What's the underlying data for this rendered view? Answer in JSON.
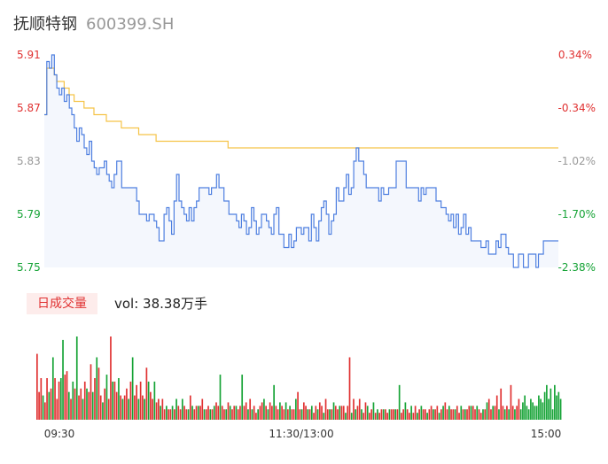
{
  "header": {
    "name": "抚顺特钢",
    "code": "600399.SH"
  },
  "volume": {
    "badge": "日成交量",
    "label": "vol: 38.38万手"
  },
  "chart_data": [
    {
      "type": "line",
      "chart": "intraday-price",
      "y_ticks_left": [
        "5.91",
        "5.87",
        "5.83",
        "5.79",
        "5.75"
      ],
      "y_ticks_right": [
        "0.34%",
        "-0.34%",
        "-1.02%",
        "-1.70%",
        "-2.38%"
      ],
      "ylim": [
        5.75,
        5.91
      ],
      "series": [
        {
          "color": "#4e7fe0",
          "values": [
            5.865,
            5.905,
            5.9,
            5.91,
            5.895,
            5.885,
            5.88,
            5.885,
            5.875,
            5.88,
            5.87,
            5.865,
            5.855,
            5.845,
            5.855,
            5.85,
            5.84,
            5.835,
            5.845,
            5.83,
            5.825,
            5.82,
            5.825,
            5.825,
            5.83,
            5.82,
            5.815,
            5.81,
            5.82,
            5.83,
            5.83,
            5.81,
            5.81,
            5.81,
            5.81,
            5.81,
            5.81,
            5.8,
            5.79,
            5.79,
            5.79,
            5.785,
            5.79,
            5.79,
            5.785,
            5.78,
            5.77,
            5.77,
            5.79,
            5.795,
            5.785,
            5.775,
            5.8,
            5.82,
            5.8,
            5.795,
            5.79,
            5.785,
            5.795,
            5.785,
            5.795,
            5.8,
            5.81,
            5.81,
            5.81,
            5.81,
            5.805,
            5.81,
            5.81,
            5.82,
            5.81,
            5.81,
            5.8,
            5.8,
            5.79,
            5.79,
            5.79,
            5.785,
            5.78,
            5.79,
            5.785,
            5.775,
            5.78,
            5.795,
            5.785,
            5.775,
            5.78,
            5.79,
            5.79,
            5.785,
            5.78,
            5.775,
            5.79,
            5.795,
            5.775,
            5.775,
            5.765,
            5.765,
            5.775,
            5.765,
            5.77,
            5.78,
            5.78,
            5.775,
            5.78,
            5.78,
            5.77,
            5.79,
            5.78,
            5.77,
            5.785,
            5.795,
            5.8,
            5.79,
            5.775,
            5.785,
            5.79,
            5.81,
            5.8,
            5.8,
            5.81,
            5.82,
            5.805,
            5.81,
            5.83,
            5.84,
            5.83,
            5.83,
            5.82,
            5.81,
            5.81,
            5.81,
            5.81,
            5.81,
            5.8,
            5.81,
            5.805,
            5.805,
            5.81,
            5.81,
            5.81,
            5.83,
            5.83,
            5.83,
            5.83,
            5.81,
            5.81,
            5.81,
            5.81,
            5.81,
            5.8,
            5.81,
            5.805,
            5.81,
            5.81,
            5.81,
            5.81,
            5.8,
            5.8,
            5.795,
            5.795,
            5.79,
            5.785,
            5.79,
            5.78,
            5.79,
            5.775,
            5.78,
            5.79,
            5.775,
            5.78,
            5.77,
            5.77,
            5.77,
            5.77,
            5.765,
            5.765,
            5.77,
            5.76,
            5.76,
            5.76,
            5.77,
            5.765,
            5.775,
            5.775,
            5.765,
            5.76,
            5.76,
            5.75,
            5.75,
            5.76,
            5.76,
            5.75,
            5.75,
            5.76,
            5.76,
            5.76,
            5.75,
            5.76,
            5.76,
            5.77,
            5.77,
            5.77,
            5.77,
            5.77,
            5.77,
            5.77
          ]
        },
        {
          "color": "#f5c347",
          "values": [
            5.865,
            5.9,
            5.9,
            5.9,
            5.895,
            5.89,
            5.89,
            5.89,
            5.885,
            5.885,
            5.88,
            5.88,
            5.875,
            5.875,
            5.875,
            5.875,
            5.87,
            5.87,
            5.87,
            5.87,
            5.865,
            5.865,
            5.865,
            5.865,
            5.865,
            5.86,
            5.86,
            5.86,
            5.86,
            5.86,
            5.86,
            5.855,
            5.855,
            5.855,
            5.855,
            5.855,
            5.855,
            5.855,
            5.85,
            5.85,
            5.85,
            5.85,
            5.85,
            5.85,
            5.85,
            5.845,
            5.845,
            5.845,
            5.845,
            5.845,
            5.845,
            5.845,
            5.845,
            5.845,
            5.845,
            5.845,
            5.845,
            5.845,
            5.845,
            5.845,
            5.845,
            5.845,
            5.845,
            5.845,
            5.845,
            5.845,
            5.845,
            5.845,
            5.845,
            5.845,
            5.845,
            5.845,
            5.845,
            5.845,
            5.84,
            5.84,
            5.84,
            5.84,
            5.84,
            5.84,
            5.84,
            5.84,
            5.84,
            5.84,
            5.84,
            5.84,
            5.84,
            5.84,
            5.84,
            5.84,
            5.84,
            5.84,
            5.84,
            5.84,
            5.84,
            5.84,
            5.84,
            5.84,
            5.84,
            5.84,
            5.84,
            5.84,
            5.84,
            5.84,
            5.84,
            5.84,
            5.84,
            5.84,
            5.84,
            5.84,
            5.84,
            5.84,
            5.84,
            5.84,
            5.84,
            5.84,
            5.84,
            5.84,
            5.84,
            5.84,
            5.84,
            5.84,
            5.84,
            5.84,
            5.84,
            5.84,
            5.84,
            5.84,
            5.84,
            5.84,
            5.84,
            5.84,
            5.84,
            5.84,
            5.84,
            5.84,
            5.84,
            5.84,
            5.84,
            5.84,
            5.84,
            5.84,
            5.84,
            5.84,
            5.84,
            5.84,
            5.84,
            5.84,
            5.84,
            5.84,
            5.84,
            5.84,
            5.84,
            5.84,
            5.84,
            5.84,
            5.84,
            5.84,
            5.84,
            5.84,
            5.84,
            5.84,
            5.84,
            5.84,
            5.84,
            5.84,
            5.84,
            5.84,
            5.84,
            5.84,
            5.84,
            5.84,
            5.84,
            5.84,
            5.84,
            5.84,
            5.84,
            5.84,
            5.84,
            5.84,
            5.84,
            5.84,
            5.84,
            5.84,
            5.84,
            5.84,
            5.84,
            5.84,
            5.84,
            5.84,
            5.84,
            5.84,
            5.84,
            5.84,
            5.84,
            5.84,
            5.84,
            5.84,
            5.84,
            5.84,
            5.84,
            5.84,
            5.84,
            5.84,
            5.84,
            5.84,
            5.84,
            5.84
          ]
        }
      ]
    },
    {
      "type": "bar",
      "chart": "intraday-volume",
      "x_ticks": [
        "09:30",
        "11:30/13:00",
        "15:00"
      ],
      "colors": {
        "up": "#e03131",
        "down": "#16a336"
      },
      "values": [
        95,
        40,
        60,
        35,
        25,
        60,
        40,
        45,
        90,
        60,
        30,
        55,
        60,
        115,
        65,
        70,
        40,
        30,
        55,
        45,
        120,
        35,
        45,
        30,
        55,
        45,
        40,
        80,
        40,
        60,
        90,
        75,
        35,
        25,
        45,
        65,
        30,
        120,
        55,
        55,
        40,
        60,
        35,
        30,
        35,
        45,
        30,
        55,
        90,
        35,
        50,
        30,
        55,
        35,
        30,
        75,
        55,
        40,
        30,
        55,
        25,
        30,
        20,
        30,
        15,
        20,
        15,
        15,
        20,
        15,
        30,
        20,
        15,
        30,
        20,
        15,
        15,
        35,
        20,
        15,
        20,
        20,
        20,
        30,
        15,
        15,
        20,
        15,
        15,
        20,
        25,
        20,
        65,
        20,
        15,
        15,
        25,
        20,
        15,
        20,
        20,
        15,
        20,
        65,
        20,
        25,
        15,
        30,
        15,
        20,
        10,
        15,
        20,
        25,
        30,
        20,
        15,
        25,
        20,
        50,
        20,
        15,
        25,
        20,
        15,
        25,
        15,
        20,
        15,
        15,
        30,
        40,
        15,
        15,
        25,
        20,
        15,
        15,
        20,
        10,
        20,
        15,
        25,
        20,
        10,
        30,
        15,
        15,
        15,
        25,
        20,
        15,
        20,
        20,
        20,
        10,
        20,
        90,
        10,
        30,
        15,
        20,
        30,
        15,
        10,
        25,
        20,
        10,
        15,
        25,
        10,
        15,
        10,
        15,
        15,
        15,
        10,
        15,
        15,
        15,
        15,
        15,
        50,
        10,
        15,
        25,
        15,
        10,
        20,
        10,
        20,
        10,
        15,
        20,
        15,
        15,
        10,
        15,
        20,
        15,
        15,
        20,
        10,
        15,
        20,
        25,
        15,
        20,
        15,
        15,
        15,
        20,
        10,
        20,
        15,
        15,
        15,
        20,
        20,
        20,
        15,
        20,
        15,
        10,
        15,
        15,
        25,
        30,
        15,
        20,
        20,
        35,
        15,
        45,
        20,
        15,
        20,
        15,
        50,
        20,
        15,
        20,
        30,
        15,
        25,
        35,
        20,
        15,
        30,
        25,
        20,
        20,
        35,
        30,
        25,
        40,
        50,
        30,
        45,
        15,
        50,
        35,
        40,
        30
      ],
      "up": [
        true,
        true,
        true,
        false,
        true,
        true,
        false,
        true,
        false,
        true,
        true,
        true,
        false,
        false,
        true,
        true,
        false,
        true,
        false,
        true,
        false,
        true,
        true,
        false,
        true,
        false,
        true,
        true,
        false,
        true,
        false,
        true,
        true,
        false,
        true,
        false,
        true,
        true,
        false,
        true,
        true,
        false,
        true,
        false,
        true,
        true,
        false,
        true,
        false,
        true,
        true,
        false,
        true,
        true,
        false,
        true,
        false,
        true,
        true,
        false,
        true,
        true,
        false,
        true,
        true,
        false,
        true,
        true,
        false,
        true,
        false,
        true,
        true,
        false,
        true,
        true,
        false,
        true,
        false,
        true,
        true,
        false,
        true,
        true,
        false,
        true,
        true,
        false,
        true,
        false,
        true,
        true,
        false,
        true,
        true,
        false,
        true,
        false,
        true,
        true,
        false,
        true,
        true,
        false,
        true,
        true,
        false,
        true,
        false,
        true,
        true,
        false,
        true,
        true,
        false,
        true,
        false,
        true,
        true,
        false,
        true,
        true,
        false,
        true,
        true,
        false,
        true,
        false,
        true,
        true,
        false,
        true,
        true,
        false,
        true,
        true,
        false,
        true,
        false,
        true,
        true,
        false,
        true,
        true,
        false,
        true,
        true,
        false,
        true,
        false,
        true,
        true,
        false,
        true,
        true,
        false,
        true,
        true,
        false,
        true,
        false,
        true,
        true,
        false,
        true,
        true,
        false,
        true,
        true,
        false,
        true,
        false,
        true,
        true,
        false,
        true,
        true,
        false,
        true,
        true,
        false,
        true,
        false,
        true,
        true,
        false,
        true,
        true,
        false,
        true,
        true,
        false,
        true,
        false,
        true,
        true,
        false,
        true,
        true,
        false,
        true,
        true,
        false,
        true,
        false,
        true,
        true,
        false,
        true,
        true,
        false,
        true,
        true,
        false,
        true,
        false,
        true,
        true,
        false,
        true,
        true,
        false,
        true,
        true,
        false,
        true,
        false,
        true,
        true,
        false,
        true,
        true,
        false,
        true,
        true,
        false,
        true,
        false,
        true,
        true,
        false,
        true,
        true,
        false
      ]
    }
  ]
}
